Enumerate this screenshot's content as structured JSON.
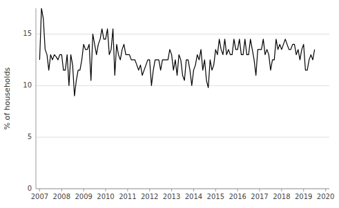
{
  "chart_data": {
    "type": "line",
    "ylabel": "% of households",
    "color": "#000000",
    "grid": true,
    "xlim": [
      2006.83,
      2020.17
    ],
    "xticks": [
      2007,
      2008,
      2009,
      2010,
      2011,
      2012,
      2013,
      2014,
      2015,
      2016,
      2017,
      2018,
      2019,
      2020
    ],
    "ylim": [
      0,
      17.5
    ],
    "yticks": [
      0,
      5,
      10,
      15
    ],
    "x": [
      2007,
      2007.083333333333,
      2007.166666666667,
      2007.25,
      2007.333333333333,
      2007.416666666667,
      2007.5,
      2007.583333333333,
      2007.666666666667,
      2007.75,
      2007.833333333333,
      2007.916666666667,
      2008,
      2008.083333333333,
      2008.166666666667,
      2008.25,
      2008.333333333333,
      2008.416666666667,
      2008.5,
      2008.583333333333,
      2008.666666666667,
      2008.75,
      2008.833333333333,
      2008.916666666667,
      2009,
      2009.083333333333,
      2009.166666666667,
      2009.25,
      2009.333333333333,
      2009.416666666667,
      2009.5,
      2009.583333333333,
      2009.666666666667,
      2009.75,
      2009.833333333333,
      2009.916666666667,
      2010,
      2010.083333333333,
      2010.166666666667,
      2010.25,
      2010.333333333333,
      2010.416666666667,
      2010.5,
      2010.583333333333,
      2010.666666666667,
      2010.75,
      2010.833333333333,
      2010.916666666667,
      2011,
      2011.083333333333,
      2011.166666666667,
      2011.25,
      2011.333333333333,
      2011.416666666667,
      2011.5,
      2011.583333333333,
      2011.666666666667,
      2011.75,
      2011.833333333333,
      2011.916666666667,
      2012,
      2012.083333333333,
      2012.166666666667,
      2012.25,
      2012.333333333333,
      2012.416666666667,
      2012.5,
      2012.583333333333,
      2012.666666666667,
      2012.75,
      2012.833333333333,
      2012.916666666667,
      2013,
      2013.083333333333,
      2013.166666666667,
      2013.25,
      2013.333333333333,
      2013.416666666667,
      2013.5,
      2013.583333333333,
      2013.666666666667,
      2013.75,
      2013.833333333333,
      2013.916666666667,
      2014,
      2014.083333333333,
      2014.166666666667,
      2014.25,
      2014.333333333333,
      2014.416666666667,
      2014.5,
      2014.583333333333,
      2014.666666666667,
      2014.75,
      2014.833333333333,
      2014.916666666667,
      2015,
      2015.083333333333,
      2015.166666666667,
      2015.25,
      2015.333333333333,
      2015.416666666667,
      2015.5,
      2015.583333333333,
      2015.666666666667,
      2015.75,
      2015.833333333333,
      2015.916666666667,
      2016,
      2016.083333333333,
      2016.166666666667,
      2016.25,
      2016.333333333333,
      2016.416666666667,
      2016.5,
      2016.583333333333,
      2016.666666666667,
      2016.75,
      2016.833333333333,
      2016.916666666667,
      2017,
      2017.083333333333,
      2017.166666666667,
      2017.25,
      2017.333333333333,
      2017.416666666667,
      2017.5,
      2017.583333333333,
      2017.666666666667,
      2017.75,
      2017.833333333333,
      2017.916666666667,
      2018,
      2018.083333333333,
      2018.166666666667,
      2018.25,
      2018.333333333333,
      2018.416666666667,
      2018.5,
      2018.583333333333,
      2018.666666666667,
      2018.75,
      2018.833333333333,
      2018.916666666667,
      2019,
      2019.083333333333,
      2019.166666666667,
      2019.25,
      2019.333333333333,
      2019.416666666667,
      2019.5
    ],
    "values": [
      12.5,
      17.5,
      16.5,
      13.5,
      13.0,
      11.5,
      13.0,
      12.5,
      13.0,
      12.8,
      12.5,
      13.0,
      13.0,
      11.5,
      11.5,
      13.0,
      10.0,
      13.0,
      12.0,
      9.0,
      10.5,
      11.5,
      11.5,
      12.5,
      14.0,
      13.5,
      13.5,
      14.0,
      10.5,
      15.0,
      14.0,
      13.0,
      14.0,
      14.5,
      15.5,
      14.5,
      14.5,
      15.5,
      13.0,
      13.5,
      15.5,
      11.0,
      14.0,
      13.0,
      12.5,
      13.5,
      14.0,
      13.0,
      13.0,
      13.0,
      12.5,
      12.5,
      12.5,
      12.0,
      11.5,
      12.0,
      11.0,
      11.5,
      12.0,
      12.5,
      12.5,
      10.0,
      11.5,
      12.5,
      12.5,
      12.5,
      11.5,
      12.5,
      12.5,
      12.5,
      12.5,
      13.5,
      13.0,
      11.5,
      12.5,
      11.0,
      13.0,
      12.5,
      11.0,
      10.5,
      12.5,
      12.5,
      11.5,
      10.0,
      11.5,
      12.0,
      13.0,
      12.5,
      13.5,
      11.5,
      12.5,
      10.5,
      9.8,
      12.5,
      11.5,
      12.0,
      13.5,
      13.0,
      14.5,
      13.5,
      13.0,
      14.5,
      13.0,
      13.5,
      13.0,
      13.0,
      14.5,
      13.5,
      13.5,
      14.5,
      13.0,
      13.0,
      14.5,
      13.0,
      13.0,
      14.5,
      13.5,
      12.5,
      11.0,
      13.5,
      13.5,
      13.5,
      14.5,
      13.0,
      13.5,
      13.0,
      11.5,
      12.5,
      12.5,
      14.5,
      13.5,
      14.0,
      13.5,
      14.0,
      14.5,
      14.0,
      13.5,
      13.5,
      14.0,
      14.0,
      13.0,
      13.5,
      12.5,
      13.5,
      14.0,
      11.5,
      11.5,
      12.5,
      13.0,
      12.5,
      13.5
    ]
  }
}
